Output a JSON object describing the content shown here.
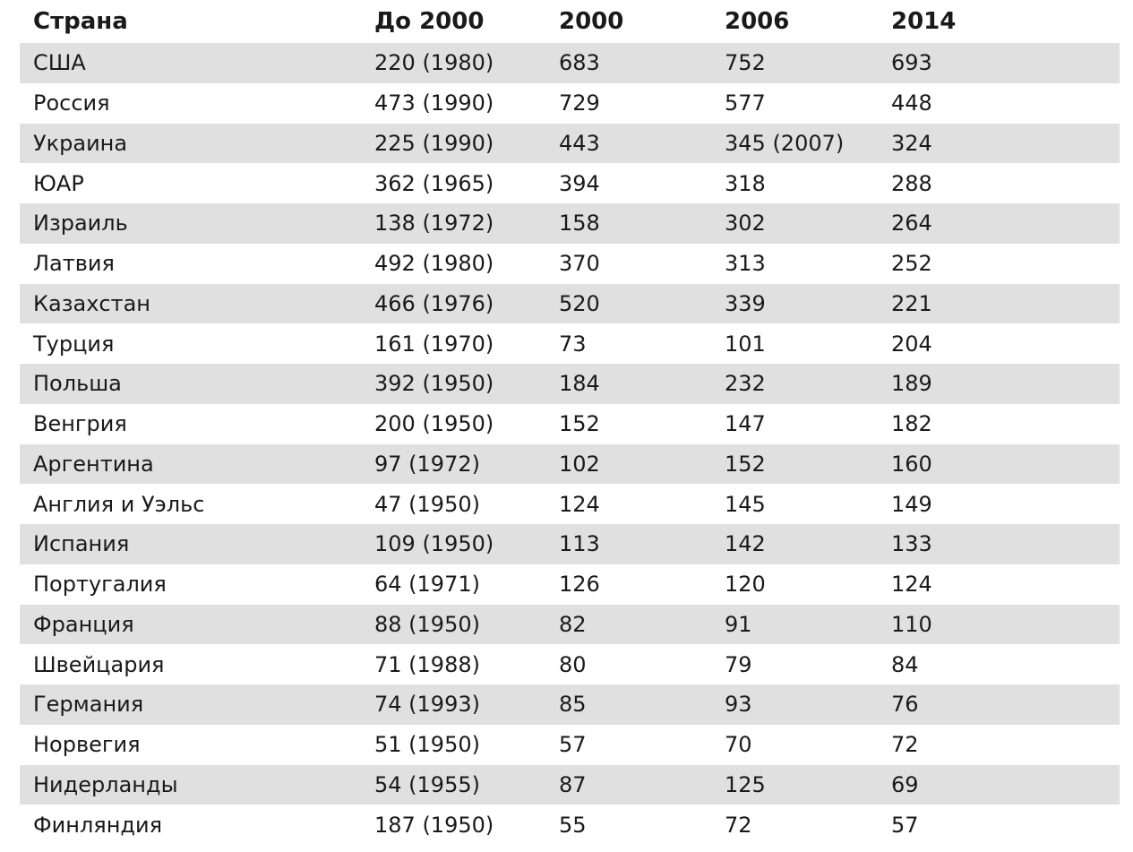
{
  "table": {
    "headers": [
      "Страна",
      "До 2000",
      "2000",
      "2006",
      "2014"
    ],
    "rows": [
      [
        "США",
        "220 (1980)",
        "683",
        "752",
        "693"
      ],
      [
        "Россия",
        "473 (1990)",
        "729",
        "577",
        "448"
      ],
      [
        "Украина",
        "225 (1990)",
        "443",
        "345 (2007)",
        "324"
      ],
      [
        "ЮАР",
        "362 (1965)",
        "394",
        "318",
        "288"
      ],
      [
        "Израиль",
        "138 (1972)",
        "158",
        "302",
        "264"
      ],
      [
        "Латвия",
        "492 (1980)",
        "370",
        "313",
        "252"
      ],
      [
        "Казахстан",
        "466 (1976)",
        "520",
        "339",
        "221"
      ],
      [
        "Турция",
        "161 (1970)",
        "73",
        "101",
        "204"
      ],
      [
        "Польша",
        "392 (1950)",
        "184",
        "232",
        "189"
      ],
      [
        "Венгрия",
        "200 (1950)",
        "152",
        "147",
        "182"
      ],
      [
        "Аргентина",
        "97 (1972)",
        "102",
        "152",
        "160"
      ],
      [
        "Англия и Уэльс",
        "47 (1950)",
        "124",
        "145",
        "149"
      ],
      [
        "Испания",
        "109 (1950)",
        "113",
        "142",
        "133"
      ],
      [
        "Португалия",
        "64 (1971)",
        "126",
        "120",
        "124"
      ],
      [
        "Франция",
        "88 (1950)",
        "82",
        "91",
        "110"
      ],
      [
        "Швейцария",
        "71 (1988)",
        "80",
        "79",
        "84"
      ],
      [
        "Германия",
        "74 (1993)",
        "85",
        "93",
        "76"
      ],
      [
        "Норвегия",
        "51 (1950)",
        "57",
        "70",
        "72"
      ],
      [
        "Нидерланды",
        "54 (1955)",
        "87",
        "125",
        "69"
      ],
      [
        "Финляндия",
        "187 (1950)",
        "55",
        "72",
        "57"
      ]
    ]
  },
  "colors": {
    "stripe": "#e0e0e1",
    "text": "#1a1a1a",
    "background": "#ffffff"
  }
}
